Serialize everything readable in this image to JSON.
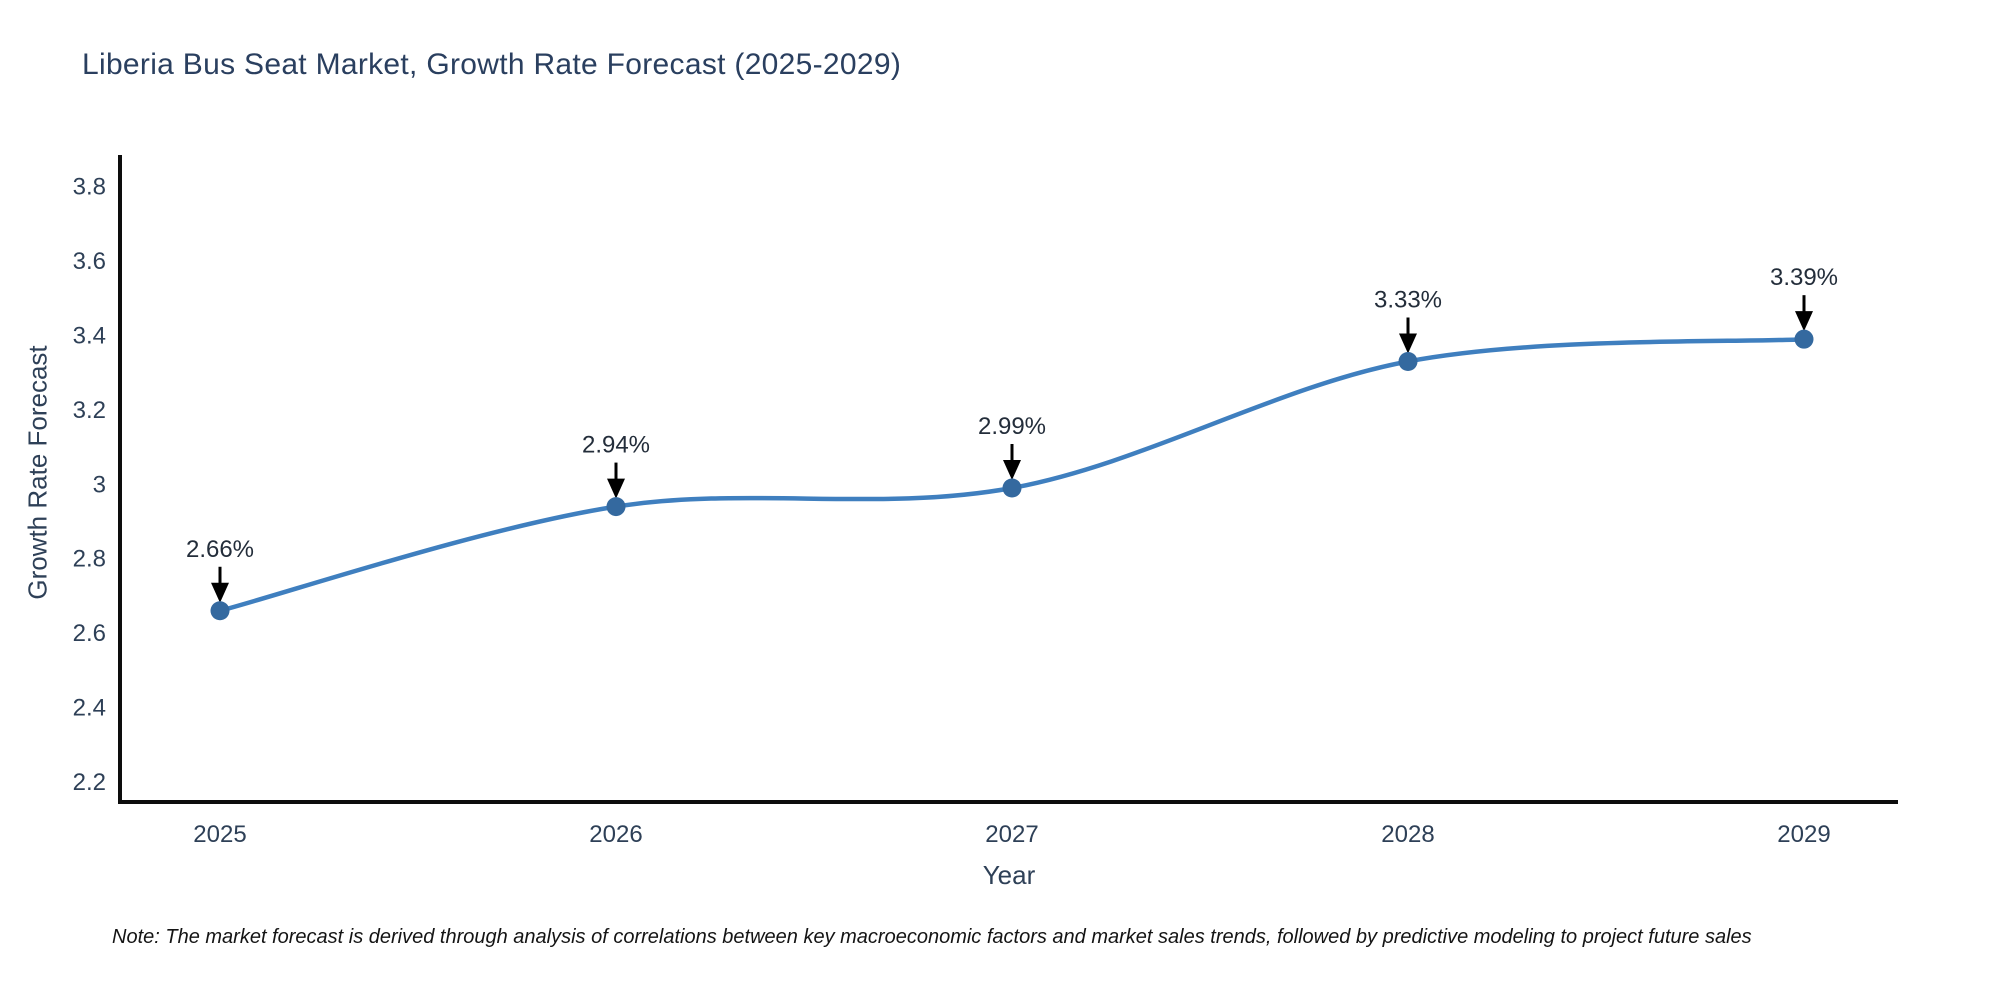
{
  "title": "Liberia Bus Seat Market, Growth Rate Forecast (2025-2029)",
  "note": "Note: The market forecast is derived through analysis of correlations between key macroeconomic factors and market sales trends, followed by predictive modeling to project future sales",
  "chart_data": {
    "type": "line",
    "title": "Liberia Bus Seat Market, Growth Rate Forecast (2025-2029)",
    "xlabel": "Year",
    "ylabel": "Growth Rate Forecast",
    "x": [
      2025,
      2026,
      2027,
      2028,
      2029
    ],
    "series": [
      {
        "name": "Growth Rate Forecast",
        "values": [
          2.66,
          2.94,
          2.99,
          3.33,
          3.39
        ],
        "point_labels": [
          "2.66%",
          "2.94%",
          "2.99%",
          "3.33%",
          "3.39%"
        ]
      }
    ],
    "x_tick_labels": [
      "2025",
      "2026",
      "2027",
      "2028",
      "2029"
    ],
    "y_tick_labels": [
      "2.2",
      "2.4",
      "2.6",
      "2.8",
      "3",
      "3.2",
      "3.4",
      "3.6",
      "3.8"
    ],
    "y_tick_values": [
      2.2,
      2.4,
      2.6,
      2.8,
      3.0,
      3.2,
      3.4,
      3.6,
      3.8
    ],
    "ylim": [
      2.146,
      3.885
    ],
    "grid": false,
    "legend": "none",
    "line_shape": "spline",
    "annotations_have_arrows": true,
    "colors": {
      "line": "#3f7fbf",
      "marker": "#34699f",
      "arrow": "#000000",
      "axis_line": "#0d0d0d",
      "chart_text": "#2e4057",
      "title_text": "#2a3f5f",
      "note_text": "#141414",
      "background": "#ffffff"
    }
  }
}
